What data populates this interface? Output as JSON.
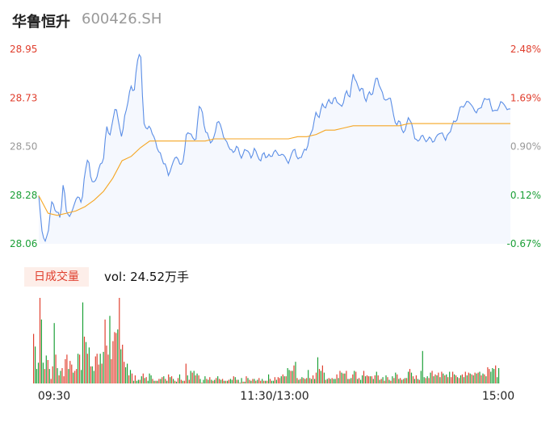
{
  "header": {
    "name": "华鲁恒升",
    "code": "600426.SH"
  },
  "volume_panel": {
    "tab_label": "日成交量",
    "vol_label": "vol:",
    "vol_value": "24.52万手"
  },
  "colors": {
    "up": "#e03e2d",
    "down": "#1a9f36",
    "neutral": "#999999",
    "price": "#5b8ee6",
    "avg": "#f5a623",
    "fill": "#f5f8fe"
  },
  "chart_data": {
    "type": "line",
    "title": "",
    "y_ticks_price": [
      "28.95",
      "28.73",
      "28.50",
      "28.28",
      "28.06"
    ],
    "y_ticks_pct": [
      "2.48%",
      "1.69%",
      "0.90%",
      "0.12%",
      "-0.67%"
    ],
    "ylim": [
      28.06,
      28.95
    ],
    "x_ticks": [
      "09:30",
      "11:30/13:00",
      "15:00"
    ],
    "series": [
      {
        "role": "price",
        "values": [
          28.28,
          28.12,
          28.07,
          28.1,
          28.25,
          28.23,
          28.2,
          28.18,
          28.34,
          28.21,
          28.18,
          28.22,
          28.26,
          28.28,
          28.24,
          28.4,
          28.45,
          28.36,
          28.33,
          28.38,
          28.42,
          28.45,
          28.6,
          28.55,
          28.62,
          28.7,
          28.6,
          28.55,
          28.65,
          28.72,
          28.78,
          28.76,
          28.9,
          28.95,
          28.62,
          28.58,
          28.6,
          28.56,
          28.52,
          28.48,
          28.45,
          28.42,
          28.38,
          28.4,
          28.46,
          28.45,
          28.42,
          28.44,
          28.58,
          28.56,
          28.55,
          28.53,
          28.7,
          28.66,
          28.58,
          28.55,
          28.52,
          28.55,
          28.63,
          28.6,
          28.55,
          28.52,
          28.5,
          28.47,
          28.51,
          28.48,
          28.45,
          28.5,
          28.48,
          28.45,
          28.5,
          28.46,
          28.44,
          28.48,
          28.45,
          28.47,
          28.46,
          28.5,
          28.45,
          28.48,
          28.45,
          28.43,
          28.47,
          28.5,
          28.44,
          28.46,
          28.48,
          28.5,
          28.55,
          28.6,
          28.66,
          28.64,
          28.7,
          28.68,
          28.72,
          28.7,
          28.73,
          28.71,
          28.68,
          28.72,
          28.76,
          28.73,
          28.84,
          28.8,
          28.76,
          28.78,
          28.7,
          28.76,
          28.73,
          28.8,
          28.82,
          28.76,
          28.73,
          28.71,
          28.74,
          28.65,
          28.6,
          28.63,
          28.57,
          28.58,
          28.65,
          28.6,
          28.55,
          28.52,
          28.56,
          28.54,
          28.53,
          28.55,
          28.52,
          28.55,
          28.57,
          28.56,
          28.54,
          28.56,
          28.6,
          28.62,
          28.64,
          28.7,
          28.68,
          28.72,
          28.7,
          28.68,
          28.66,
          28.68,
          28.7,
          28.73,
          28.72,
          28.68,
          28.66,
          28.68,
          28.71,
          28.7,
          28.67,
          28.68
        ],
        "interpolate": true
      },
      {
        "role": "avg",
        "values": [
          28.28,
          28.2,
          28.19,
          28.2,
          28.21,
          28.23,
          28.26,
          28.3,
          28.36,
          28.44,
          28.46,
          28.5,
          28.53,
          28.53,
          28.53,
          28.53,
          28.53,
          28.53,
          28.53,
          28.54,
          28.54,
          28.54,
          28.54,
          28.54,
          28.54,
          28.54,
          28.54,
          28.54,
          28.55,
          28.55,
          28.56,
          28.58,
          28.58,
          28.59,
          28.6,
          28.6,
          28.6,
          28.6,
          28.6,
          28.6,
          28.61,
          28.61,
          28.61,
          28.61,
          28.61,
          28.61,
          28.61,
          28.61,
          28.61,
          28.61,
          28.61,
          28.61
        ]
      }
    ],
    "volume": {
      "values": [
        55,
        41,
        16,
        23,
        95,
        71,
        23,
        16,
        31,
        26,
        16,
        5,
        19,
        67,
        32,
        17,
        9,
        14,
        17,
        8,
        27,
        32,
        16,
        25,
        21,
        12,
        14,
        16,
        33,
        32,
        15,
        90,
        52,
        46,
        33,
        40,
        19,
        19,
        14,
        30,
        33,
        21,
        33,
        22,
        35,
        71,
        42,
        32,
        75,
        27,
        47,
        57,
        56,
        60,
        95,
        38,
        43,
        24,
        18,
        22,
        9,
        15,
        11,
        3,
        9,
        3,
        4,
        4,
        8,
        11,
        6,
        7,
        3,
        11,
        9,
        5,
        3,
        3,
        3,
        5,
        5,
        7,
        8,
        5,
        3,
        10,
        7,
        8,
        5,
        3,
        2,
        6,
        10,
        4,
        3,
        3,
        22,
        9,
        4,
        14,
        12,
        14,
        9,
        11,
        9,
        5,
        1,
        4,
        8,
        5,
        4,
        7,
        4,
        3,
        4,
        6,
        8,
        5,
        4,
        5,
        3,
        3,
        3,
        4,
        5,
        4,
        8,
        7,
        4,
        4,
        1,
        6,
        2,
        2,
        8,
        6,
        4,
        3,
        5,
        5,
        3,
        4,
        6,
        3,
        5,
        3,
        3,
        3,
        10,
        5,
        3,
        3,
        7,
        4,
        7,
        6,
        8,
        10,
        8,
        8,
        17,
        15,
        14,
        14,
        20,
        24,
        6,
        4,
        5,
        7,
        6,
        5,
        6,
        15,
        6,
        5,
        9,
        5,
        12,
        29,
        16,
        14,
        20,
        12,
        4,
        5,
        6,
        5,
        6,
        5,
        5,
        10,
        6,
        14,
        12,
        11,
        11,
        14,
        5,
        5,
        6,
        10,
        14,
        13,
        5,
        6,
        4,
        9,
        14,
        8,
        9,
        8,
        8,
        8,
        5,
        9,
        13,
        9,
        4,
        5,
        7,
        3,
        9,
        7,
        4,
        3,
        8,
        6,
        12,
        10,
        5,
        6,
        4,
        5,
        6,
        6,
        13,
        16,
        12,
        8,
        5,
        9,
        5,
        4,
        14,
        36,
        7,
        6,
        8,
        6,
        12,
        14,
        8,
        10,
        9,
        12,
        7,
        13,
        11,
        9,
        10,
        7,
        13,
        7,
        13,
        10,
        9,
        7,
        6,
        9,
        10,
        7,
        13,
        9,
        12,
        11,
        10,
        9,
        12,
        11,
        12,
        13,
        9,
        11,
        10,
        8,
        18,
        16,
        13,
        17,
        16,
        20,
        7,
        17
      ],
      "up_flags": "rgggrggrgrgrrgrgrgrrrrgrrgrrgrggrgrgrggrrrgrgrrrgrrrrgrgrrggrgrgrggrgrgrgggrgrgrgrgrgrgrgrgrgrgrrgrgrgrgrgrggrgrgrgrgrgrgrgrggrgrgrgrgrgrgrgrgrrgrgrgrggrgrrgrgrggrgrgrgrgrgrgrgrgrgrgrgrgrgrggrgrgrgrgrgrgrgrggrgrrgrgrgrgrgrgrgrgrgrgrgrgrgrgrgrgrgggrgrgrgrgrgrgrgrgrrgrgrgrgrgrgrgrgrgrgrgr"
    }
  }
}
